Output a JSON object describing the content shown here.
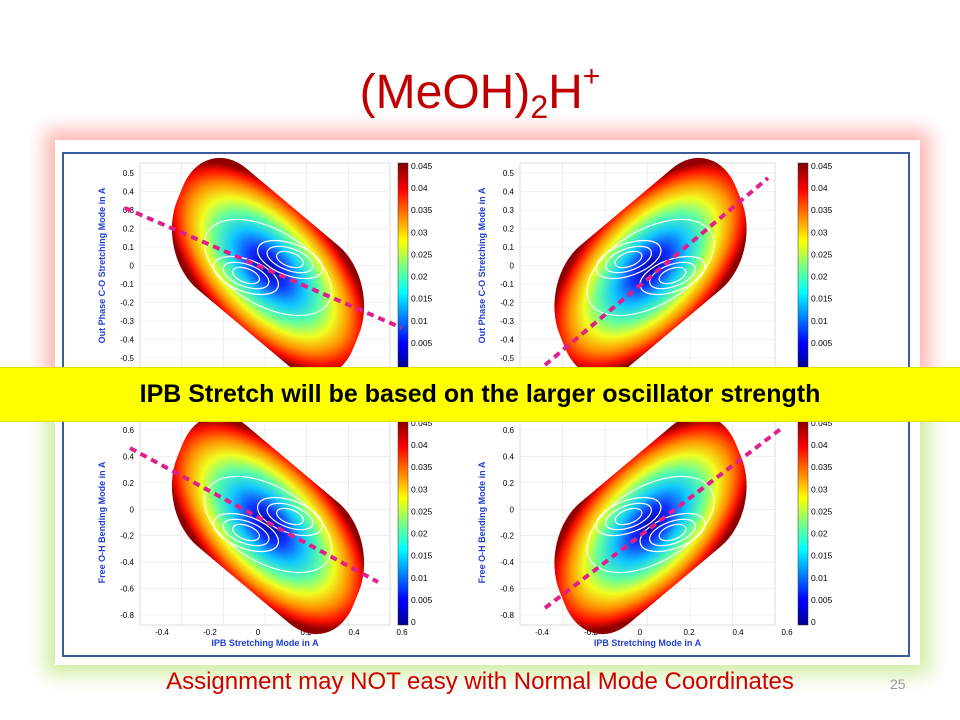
{
  "title": {
    "base": "(MeOH)",
    "sub": "2",
    "mid": "H",
    "sup": "+"
  },
  "banner": "IPB Stretch will be based on the larger oscillator strength",
  "footer": "Assignment may NOT easy with Normal Mode Coordinates",
  "page_number": "25",
  "colors": {
    "title": "#c00000",
    "banner": "#ffff00",
    "footer": "#d00000",
    "axis_label": "#1f3fd0",
    "frame": "#3b5d9e",
    "dash": "#e0208a"
  },
  "plots": [
    {
      "id": "top-left",
      "ylabel": "Out Phase C-O Stretching Mode in A",
      "yticks": [
        "0.5",
        "0.4",
        "0.3",
        "0.2",
        "0.1",
        "0",
        "-0.1",
        "-0.2",
        "-0.3",
        "-0.4",
        "-0.5"
      ],
      "colorbar": [
        "0.045",
        "0.04",
        "0.035",
        "0.03",
        "0.025",
        "0.02",
        "0.015",
        "0.01",
        "0.005"
      ]
    },
    {
      "id": "top-right",
      "ylabel": "Out Phase C-O Stretching Mode in A",
      "yticks": [
        "0.5",
        "0.4",
        "0.3",
        "0.2",
        "0.1",
        "0",
        "-0.1",
        "-0.2",
        "-0.3",
        "-0.4",
        "-0.5"
      ],
      "colorbar": [
        "0.045",
        "0.04",
        "0.035",
        "0.03",
        "0.025",
        "0.02",
        "0.015",
        "0.01",
        "0.005"
      ]
    },
    {
      "id": "bottom-left",
      "ylabel": "Free O-H Bending Mode in A",
      "xlabel": "IPB  Stretching Mode in A",
      "yticks": [
        "0.6",
        "0.4",
        "0.2",
        "0",
        "-0.2",
        "-0.4",
        "-0.6",
        "-0.8"
      ],
      "xticks": [
        "-0.4",
        "-0.2",
        "0",
        "0.2",
        "0.4",
        "0.6"
      ],
      "colorbar": [
        "0.045",
        "0.04",
        "0.035",
        "0.03",
        "0.025",
        "0.02",
        "0.015",
        "0.01",
        "0.005",
        "0"
      ]
    },
    {
      "id": "bottom-right",
      "ylabel": "Free O-H Bending Mode in A",
      "xlabel": "IPB  Stretching Mode in A",
      "yticks": [
        "0.6",
        "0.4",
        "0.2",
        "0",
        "-0.2",
        "-0.4",
        "-0.6",
        "-0.8"
      ],
      "xticks": [
        "-0.4",
        "-0.2",
        "0",
        "0.2",
        "0.4",
        "0.6"
      ],
      "colorbar": [
        "0.045",
        "0.04",
        "0.035",
        "0.03",
        "0.025",
        "0.02",
        "0.015",
        "0.01",
        "0.005",
        "0"
      ]
    }
  ]
}
